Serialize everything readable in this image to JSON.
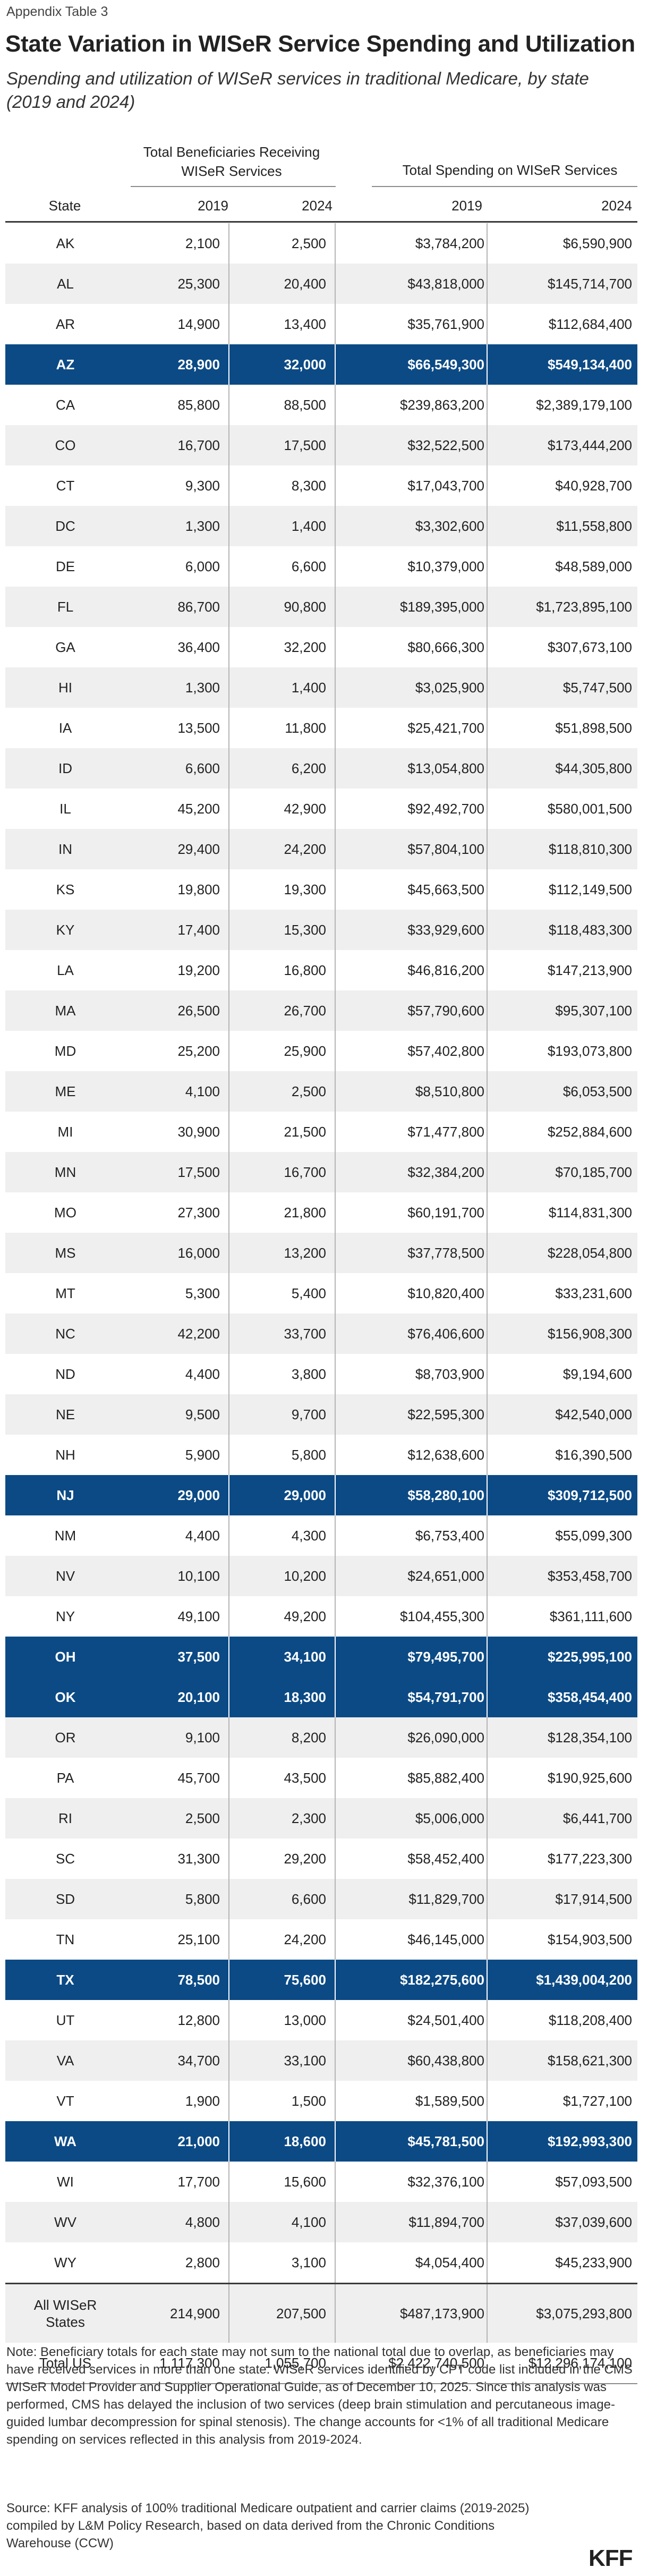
{
  "appendix_label": "Appendix Table 3",
  "title": "State Variation in WISeR Service Spending and Utilization",
  "subtitle": "Spending and utilization of WISeR services in traditional Medicare, by state (2019 and 2024)",
  "headers": {
    "group_beneficiaries": "Total Beneficiaries Receiving WISeR Services",
    "group_spending": "Total Spending on WISeR Services",
    "state": "State",
    "y2019_b": "2019",
    "y2024_b": "2024",
    "y2019_s": "2019",
    "y2024_s": "2024"
  },
  "rows": [
    {
      "state": "AK",
      "b2019": "2,100",
      "b2024": "2,500",
      "s2019": "$3,784,200",
      "s2024": "$6,590,900",
      "hl": false
    },
    {
      "state": "AL",
      "b2019": "25,300",
      "b2024": "20,400",
      "s2019": "$43,818,000",
      "s2024": "$145,714,700",
      "hl": false
    },
    {
      "state": "AR",
      "b2019": "14,900",
      "b2024": "13,400",
      "s2019": "$35,761,900",
      "s2024": "$112,684,400",
      "hl": false
    },
    {
      "state": "AZ",
      "b2019": "28,900",
      "b2024": "32,000",
      "s2019": "$66,549,300",
      "s2024": "$549,134,400",
      "hl": true
    },
    {
      "state": "CA",
      "b2019": "85,800",
      "b2024": "88,500",
      "s2019": "$239,863,200",
      "s2024": "$2,389,179,100",
      "hl": false
    },
    {
      "state": "CO",
      "b2019": "16,700",
      "b2024": "17,500",
      "s2019": "$32,522,500",
      "s2024": "$173,444,200",
      "hl": false
    },
    {
      "state": "CT",
      "b2019": "9,300",
      "b2024": "8,300",
      "s2019": "$17,043,700",
      "s2024": "$40,928,700",
      "hl": false
    },
    {
      "state": "DC",
      "b2019": "1,300",
      "b2024": "1,400",
      "s2019": "$3,302,600",
      "s2024": "$11,558,800",
      "hl": false
    },
    {
      "state": "DE",
      "b2019": "6,000",
      "b2024": "6,600",
      "s2019": "$10,379,000",
      "s2024": "$48,589,000",
      "hl": false
    },
    {
      "state": "FL",
      "b2019": "86,700",
      "b2024": "90,800",
      "s2019": "$189,395,000",
      "s2024": "$1,723,895,100",
      "hl": false
    },
    {
      "state": "GA",
      "b2019": "36,400",
      "b2024": "32,200",
      "s2019": "$80,666,300",
      "s2024": "$307,673,100",
      "hl": false
    },
    {
      "state": "HI",
      "b2019": "1,300",
      "b2024": "1,400",
      "s2019": "$3,025,900",
      "s2024": "$5,747,500",
      "hl": false
    },
    {
      "state": "IA",
      "b2019": "13,500",
      "b2024": "11,800",
      "s2019": "$25,421,700",
      "s2024": "$51,898,500",
      "hl": false
    },
    {
      "state": "ID",
      "b2019": "6,600",
      "b2024": "6,200",
      "s2019": "$13,054,800",
      "s2024": "$44,305,800",
      "hl": false
    },
    {
      "state": "IL",
      "b2019": "45,200",
      "b2024": "42,900",
      "s2019": "$92,492,700",
      "s2024": "$580,001,500",
      "hl": false
    },
    {
      "state": "IN",
      "b2019": "29,400",
      "b2024": "24,200",
      "s2019": "$57,804,100",
      "s2024": "$118,810,300",
      "hl": false
    },
    {
      "state": "KS",
      "b2019": "19,800",
      "b2024": "19,300",
      "s2019": "$45,663,500",
      "s2024": "$112,149,500",
      "hl": false
    },
    {
      "state": "KY",
      "b2019": "17,400",
      "b2024": "15,300",
      "s2019": "$33,929,600",
      "s2024": "$118,483,300",
      "hl": false
    },
    {
      "state": "LA",
      "b2019": "19,200",
      "b2024": "16,800",
      "s2019": "$46,816,200",
      "s2024": "$147,213,900",
      "hl": false
    },
    {
      "state": "MA",
      "b2019": "26,500",
      "b2024": "26,700",
      "s2019": "$57,790,600",
      "s2024": "$95,307,100",
      "hl": false
    },
    {
      "state": "MD",
      "b2019": "25,200",
      "b2024": "25,900",
      "s2019": "$57,402,800",
      "s2024": "$193,073,800",
      "hl": false
    },
    {
      "state": "ME",
      "b2019": "4,100",
      "b2024": "2,500",
      "s2019": "$8,510,800",
      "s2024": "$6,053,500",
      "hl": false
    },
    {
      "state": "MI",
      "b2019": "30,900",
      "b2024": "21,500",
      "s2019": "$71,477,800",
      "s2024": "$252,884,600",
      "hl": false
    },
    {
      "state": "MN",
      "b2019": "17,500",
      "b2024": "16,700",
      "s2019": "$32,384,200",
      "s2024": "$70,185,700",
      "hl": false
    },
    {
      "state": "MO",
      "b2019": "27,300",
      "b2024": "21,800",
      "s2019": "$60,191,700",
      "s2024": "$114,831,300",
      "hl": false
    },
    {
      "state": "MS",
      "b2019": "16,000",
      "b2024": "13,200",
      "s2019": "$37,778,500",
      "s2024": "$228,054,800",
      "hl": false
    },
    {
      "state": "MT",
      "b2019": "5,300",
      "b2024": "5,400",
      "s2019": "$10,820,400",
      "s2024": "$33,231,600",
      "hl": false
    },
    {
      "state": "NC",
      "b2019": "42,200",
      "b2024": "33,700",
      "s2019": "$76,406,600",
      "s2024": "$156,908,300",
      "hl": false
    },
    {
      "state": "ND",
      "b2019": "4,400",
      "b2024": "3,800",
      "s2019": "$8,703,900",
      "s2024": "$9,194,600",
      "hl": false
    },
    {
      "state": "NE",
      "b2019": "9,500",
      "b2024": "9,700",
      "s2019": "$22,595,300",
      "s2024": "$42,540,000",
      "hl": false
    },
    {
      "state": "NH",
      "b2019": "5,900",
      "b2024": "5,800",
      "s2019": "$12,638,600",
      "s2024": "$16,390,500",
      "hl": false
    },
    {
      "state": "NJ",
      "b2019": "29,000",
      "b2024": "29,000",
      "s2019": "$58,280,100",
      "s2024": "$309,712,500",
      "hl": true
    },
    {
      "state": "NM",
      "b2019": "4,400",
      "b2024": "4,300",
      "s2019": "$6,753,400",
      "s2024": "$55,099,300",
      "hl": false
    },
    {
      "state": "NV",
      "b2019": "10,100",
      "b2024": "10,200",
      "s2019": "$24,651,000",
      "s2024": "$353,458,700",
      "hl": false
    },
    {
      "state": "NY",
      "b2019": "49,100",
      "b2024": "49,200",
      "s2019": "$104,455,300",
      "s2024": "$361,111,600",
      "hl": false
    },
    {
      "state": "OH",
      "b2019": "37,500",
      "b2024": "34,100",
      "s2019": "$79,495,700",
      "s2024": "$225,995,100",
      "hl": true
    },
    {
      "state": "OK",
      "b2019": "20,100",
      "b2024": "18,300",
      "s2019": "$54,791,700",
      "s2024": "$358,454,400",
      "hl": true
    },
    {
      "state": "OR",
      "b2019": "9,100",
      "b2024": "8,200",
      "s2019": "$26,090,000",
      "s2024": "$128,354,100",
      "hl": false
    },
    {
      "state": "PA",
      "b2019": "45,700",
      "b2024": "43,500",
      "s2019": "$85,882,400",
      "s2024": "$190,925,600",
      "hl": false
    },
    {
      "state": "RI",
      "b2019": "2,500",
      "b2024": "2,300",
      "s2019": "$5,006,000",
      "s2024": "$6,441,700",
      "hl": false
    },
    {
      "state": "SC",
      "b2019": "31,300",
      "b2024": "29,200",
      "s2019": "$58,452,400",
      "s2024": "$177,223,300",
      "hl": false
    },
    {
      "state": "SD",
      "b2019": "5,800",
      "b2024": "6,600",
      "s2019": "$11,829,700",
      "s2024": "$17,914,500",
      "hl": false
    },
    {
      "state": "TN",
      "b2019": "25,100",
      "b2024": "24,200",
      "s2019": "$46,145,000",
      "s2024": "$154,903,500",
      "hl": false
    },
    {
      "state": "TX",
      "b2019": "78,500",
      "b2024": "75,600",
      "s2019": "$182,275,600",
      "s2024": "$1,439,004,200",
      "hl": true
    },
    {
      "state": "UT",
      "b2019": "12,800",
      "b2024": "13,000",
      "s2019": "$24,501,400",
      "s2024": "$118,208,400",
      "hl": false
    },
    {
      "state": "VA",
      "b2019": "34,700",
      "b2024": "33,100",
      "s2019": "$60,438,800",
      "s2024": "$158,621,300",
      "hl": false
    },
    {
      "state": "VT",
      "b2019": "1,900",
      "b2024": "1,500",
      "s2019": "$1,589,500",
      "s2024": "$1,727,100",
      "hl": false
    },
    {
      "state": "WA",
      "b2019": "21,000",
      "b2024": "18,600",
      "s2019": "$45,781,500",
      "s2024": "$192,993,300",
      "hl": true
    },
    {
      "state": "WI",
      "b2019": "17,700",
      "b2024": "15,600",
      "s2019": "$32,376,100",
      "s2024": "$57,093,500",
      "hl": false
    },
    {
      "state": "WV",
      "b2019": "4,800",
      "b2024": "4,100",
      "s2019": "$11,894,700",
      "s2024": "$37,039,600",
      "hl": false
    },
    {
      "state": "WY",
      "b2019": "2,800",
      "b2024": "3,100",
      "s2019": "$4,054,400",
      "s2024": "$45,233,900",
      "hl": false
    }
  ],
  "all_wiser": {
    "label_line1": "All WISeR",
    "label_line2": "States",
    "b2019": "214,900",
    "b2024": "207,500",
    "s2019": "$487,173,900",
    "s2024": "$3,075,293,800"
  },
  "total_us": {
    "label": "Total US",
    "b2019": "1,117,300",
    "b2024": "1,055,700",
    "s2019": "$2,422,740,500",
    "s2024": "$12,296,174,100"
  },
  "note": "Note: Beneficiary totals for each state may not sum to the national total due to overlap, as beneficiaries may have received services in more than one state. WISeR services identified by CPT code list included in the CMS WISeR Model Provider and Supplier Operational Guide, as of December 10, 2025. Since this analysis was performed, CMS has delayed the inclusion of two services (deep brain stimulation and percutaneous image-guided lumbar decompression for spinal stenosis). The change accounts for <1% of all traditional Medicare spending on services reflected in this analysis from 2019-2024.",
  "source": "Source: KFF analysis of 100% traditional Medicare outpatient and carrier claims (2019-2025) compiled by L&M Policy Research, based on data derived from the Chronic Conditions Warehouse (CCW)",
  "logo": "KFF"
}
